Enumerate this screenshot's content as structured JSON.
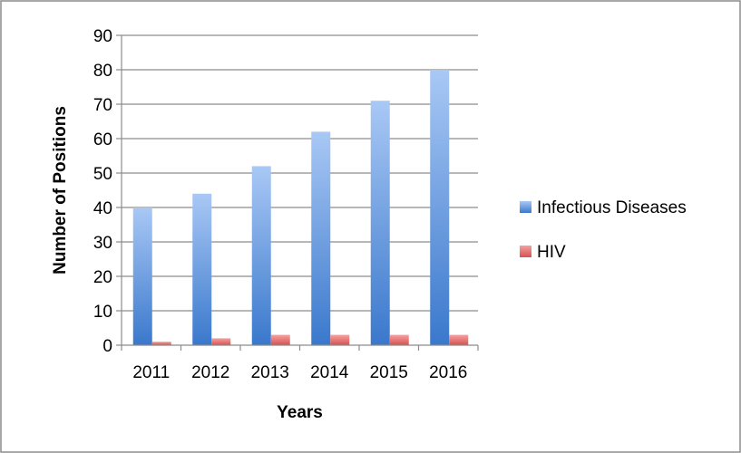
{
  "chart_data": {
    "type": "bar",
    "categories": [
      "2011",
      "2012",
      "2013",
      "2014",
      "2015",
      "2016"
    ],
    "series": [
      {
        "name": "Infectious Diseases",
        "values": [
          40,
          44,
          52,
          62,
          71,
          80
        ],
        "color": "#4a86d8"
      },
      {
        "name": "HIV",
        "values": [
          1,
          2,
          3,
          3,
          3,
          3
        ],
        "color": "#e05a5a"
      }
    ],
    "xlabel": "Years",
    "ylabel": "Number of Positions",
    "ylim": [
      0,
      90
    ],
    "yticks": [
      "0",
      "10",
      "20",
      "30",
      "40",
      "50",
      "60",
      "70",
      "80",
      "90"
    ],
    "grid": true,
    "legend_position": "right"
  }
}
